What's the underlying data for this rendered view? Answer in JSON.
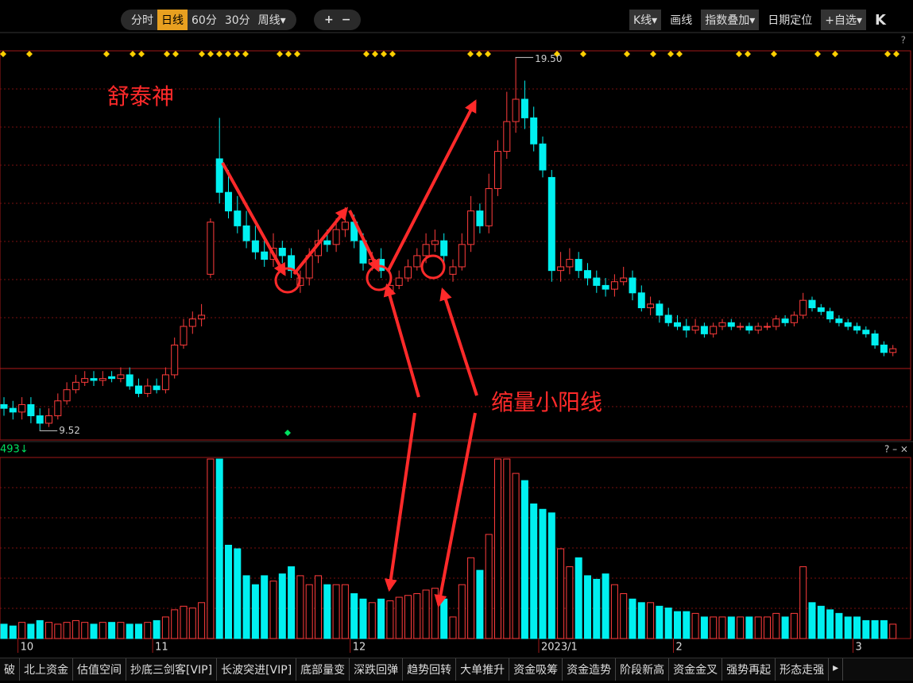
{
  "toolbar": [
    "分时",
    "日线",
    "60分",
    "30分",
    "周线▾",
    "+",
    "−",
    "K线▾",
    "画线",
    "指数叠加▾",
    "日期定位",
    "+自选▾",
    "K"
  ],
  "help": "?",
  "volume_controls": "? – ×",
  "volume_label": "493↓",
  "tabs": [
    "破",
    "北上资金",
    "估值空间",
    "抄底三剑客[VIP]",
    "长波突进[VIP]",
    "底部量变",
    "深跌回弹",
    "趋势回转",
    "大单推升",
    "资金吸筹",
    "资金造势",
    "阶段新高",
    "资金金叉",
    "强势再起",
    "形态走强",
    "▸"
  ],
  "chart_data": {
    "type": "candlestick",
    "title": "舒泰神",
    "annotation": "缩量小阳线",
    "categories": [
      null,
      null,
      "10",
      null,
      null,
      null,
      null,
      null,
      null,
      null,
      null,
      null,
      null,
      null,
      null,
      null,
      null,
      "11",
      null,
      null,
      null,
      null,
      null,
      null,
      null,
      null,
      null,
      null,
      null,
      null,
      null,
      null,
      null,
      null,
      null,
      null,
      null,
      null,
      null,
      "12",
      null,
      null,
      null,
      null,
      null,
      null,
      null,
      null,
      null,
      null,
      null,
      null,
      null,
      null,
      null,
      null,
      null,
      null,
      null,
      null,
      "2023/1",
      null,
      null,
      null,
      null,
      null,
      null,
      null,
      null,
      null,
      null,
      null,
      null,
      null,
      null,
      "2",
      null,
      null,
      null,
      null,
      null,
      null,
      null,
      null,
      null,
      null,
      null,
      null,
      null,
      null,
      null,
      null,
      null,
      null,
      null,
      "3",
      null,
      null,
      null,
      null
    ],
    "open": [
      10.2,
      10.1,
      10.0,
      10.2,
      9.9,
      9.7,
      9.9,
      10.3,
      10.6,
      10.8,
      10.9,
      10.85,
      10.95,
      10.9,
      11.0,
      10.7,
      10.5,
      10.7,
      10.6,
      11.0,
      11.8,
      12.3,
      12.5,
      13.7,
      16.8,
      15.9,
      15.4,
      15.0,
      14.6,
      14.3,
      14.1,
      14.4,
      14.2,
      13.4,
      13.6,
      14.2,
      14.6,
      14.5,
      14.9,
      15.1,
      14.6,
      14.0,
      14.1,
      13.2,
      13.4,
      13.6,
      13.9,
      14.2,
      14.5,
      14.6,
      13.7,
      13.9,
      14.5,
      15.4,
      15.0,
      16.0,
      17.0,
      17.8,
      18.4,
      17.9,
      17.2,
      16.3,
      13.8,
      13.9,
      14.1,
      13.8,
      13.6,
      13.4,
      13.3,
      13.5,
      13.6,
      13.2,
      12.8,
      12.9,
      12.6,
      12.4,
      12.3,
      12.2,
      12.3,
      12.1,
      12.3,
      12.4,
      12.3,
      12.3,
      12.2,
      12.3,
      12.3,
      12.5,
      12.4,
      12.6,
      13.0,
      12.8,
      12.7,
      12.5,
      12.4,
      12.3,
      12.2,
      12.1,
      11.8,
      11.6
    ],
    "high": [
      10.4,
      10.3,
      10.4,
      10.4,
      10.1,
      10.1,
      10.5,
      10.8,
      11.0,
      11.1,
      11.1,
      11.1,
      11.1,
      11.2,
      11.2,
      10.9,
      10.9,
      10.9,
      11.2,
      12.0,
      12.5,
      12.7,
      12.9,
      15.2,
      17.9,
      16.5,
      15.8,
      15.4,
      15.0,
      14.7,
      14.8,
      14.6,
      14.4,
      13.8,
      14.4,
      14.9,
      14.9,
      15.2,
      15.5,
      15.3,
      14.8,
      14.3,
      14.4,
      13.7,
      13.8,
      14.1,
      14.4,
      14.8,
      14.9,
      14.8,
      14.1,
      14.8,
      15.8,
      15.6,
      16.4,
      17.3,
      18.6,
      19.5,
      18.9,
      18.2,
      17.4,
      16.5,
      14.3,
      14.4,
      14.3,
      14.0,
      13.8,
      13.6,
      13.7,
      13.9,
      13.8,
      13.4,
      13.1,
      13.0,
      12.8,
      12.6,
      12.5,
      12.5,
      12.4,
      12.4,
      12.5,
      12.5,
      12.4,
      12.4,
      12.4,
      12.4,
      12.6,
      12.6,
      12.7,
      13.2,
      13.1,
      12.9,
      12.8,
      12.6,
      12.5,
      12.4,
      12.3,
      12.2,
      11.9,
      11.8
    ],
    "low": [
      9.9,
      9.8,
      9.8,
      9.7,
      9.52,
      9.6,
      9.8,
      10.2,
      10.5,
      10.7,
      10.7,
      10.7,
      10.8,
      10.8,
      10.6,
      10.4,
      10.4,
      10.5,
      10.5,
      10.9,
      11.7,
      12.1,
      12.3,
      13.6,
      15.6,
      15.2,
      14.8,
      14.4,
      14.1,
      13.9,
      13.9,
      14.0,
      13.6,
      13.2,
      13.4,
      14.0,
      14.3,
      14.3,
      14.7,
      14.4,
      13.8,
      13.8,
      13.6,
      13.0,
      13.3,
      13.5,
      13.8,
      14.0,
      14.3,
      14.0,
      13.5,
      13.8,
      14.3,
      14.8,
      14.8,
      15.8,
      16.8,
      17.5,
      17.6,
      17.0,
      16.3,
      13.5,
      13.5,
      13.7,
      13.6,
      13.4,
      13.2,
      13.1,
      13.1,
      13.4,
      13.0,
      12.7,
      12.6,
      12.4,
      12.3,
      12.2,
      12.0,
      12.1,
      12.0,
      12.0,
      12.2,
      12.2,
      12.2,
      12.1,
      12.1,
      12.2,
      12.2,
      12.3,
      12.3,
      12.5,
      12.7,
      12.6,
      12.4,
      12.3,
      12.2,
      12.1,
      12.0,
      11.7,
      11.5,
      11.5
    ],
    "close": [
      10.1,
      10.0,
      10.2,
      9.9,
      9.7,
      9.9,
      10.3,
      10.6,
      10.8,
      10.9,
      10.85,
      10.9,
      10.9,
      11.0,
      10.7,
      10.5,
      10.7,
      10.6,
      11.0,
      11.8,
      12.3,
      12.5,
      12.6,
      15.1,
      15.9,
      15.4,
      15.0,
      14.6,
      14.3,
      14.1,
      14.4,
      14.2,
      13.8,
      13.6,
      14.2,
      14.6,
      14.5,
      14.9,
      15.1,
      14.6,
      14.0,
      14.1,
      13.8,
      13.4,
      13.6,
      13.9,
      14.2,
      14.5,
      14.6,
      14.2,
      13.9,
      14.5,
      15.4,
      15.0,
      16.0,
      17.0,
      17.8,
      18.4,
      17.9,
      17.2,
      16.5,
      13.8,
      13.9,
      14.1,
      13.8,
      13.6,
      13.4,
      13.3,
      13.5,
      13.6,
      13.2,
      12.8,
      12.9,
      12.6,
      12.4,
      12.3,
      12.2,
      12.3,
      12.1,
      12.3,
      12.4,
      12.3,
      12.3,
      12.2,
      12.3,
      12.3,
      12.5,
      12.4,
      12.6,
      13.0,
      12.8,
      12.7,
      12.5,
      12.4,
      12.3,
      12.2,
      12.1,
      11.8,
      11.6,
      11.7
    ],
    "volume": [
      8,
      7,
      9,
      8,
      10,
      9,
      8,
      9,
      10,
      9,
      8,
      9,
      9,
      9,
      8,
      8,
      9,
      10,
      12,
      16,
      18,
      17,
      20,
      100,
      100,
      52,
      50,
      35,
      30,
      35,
      32,
      36,
      40,
      35,
      30,
      35,
      30,
      30,
      30,
      25,
      22,
      20,
      22,
      21,
      23,
      24,
      25,
      27,
      28,
      22,
      12,
      30,
      45,
      38,
      58,
      100,
      100,
      92,
      88,
      75,
      72,
      70,
      50,
      40,
      45,
      35,
      33,
      36,
      30,
      25,
      22,
      20,
      20,
      18,
      17,
      15,
      15,
      14,
      12,
      12,
      12,
      12,
      12,
      12,
      12,
      12,
      14,
      12,
      14,
      40,
      20,
      18,
      16,
      14,
      12,
      12,
      10,
      10,
      10,
      8
    ],
    "max_label": {
      "value": 19.5,
      "label": "19.50"
    },
    "min_label": {
      "value": 9.52,
      "label": "9.52"
    },
    "ylim": [
      9.25,
      19.7
    ],
    "vlim": [
      0,
      100
    ],
    "up_color": "#ff3c3c",
    "down_color": "#00f0f0"
  }
}
